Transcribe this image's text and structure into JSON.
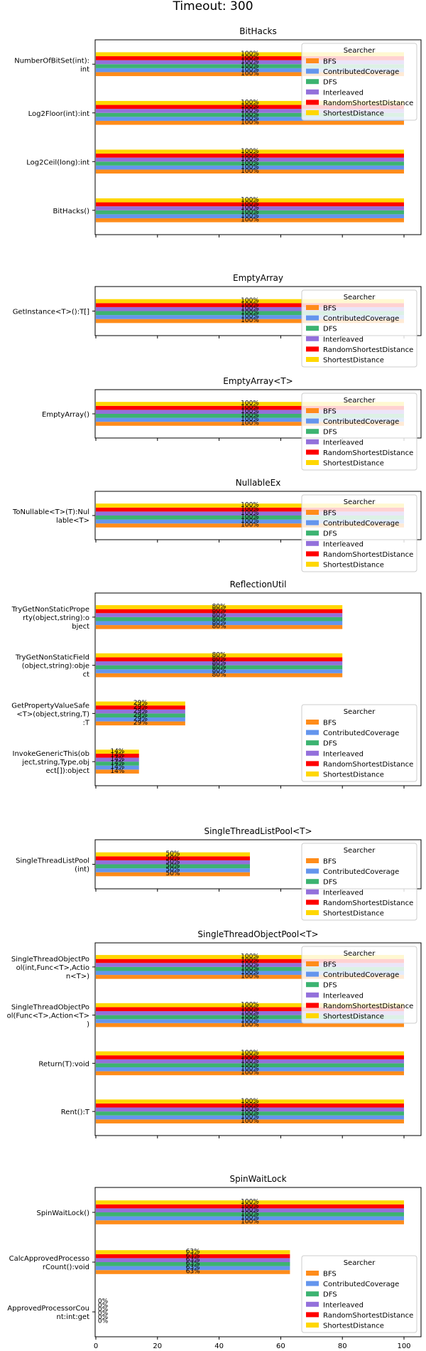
{
  "page_title": "Timeout: 300",
  "colors": {
    "BFS": "#ff8c1a",
    "ContributedCoverage": "#6495ed",
    "DFS": "#3cb371",
    "Interleaved": "#9370db",
    "RandomShortestDistance": "#ff0000",
    "ShortestDistance": "#ffd700"
  },
  "legend": {
    "title": "Searcher",
    "entries": [
      "BFS",
      "ContributedCoverage",
      "DFS",
      "Interleaved",
      "RandomShortestDistance",
      "ShortestDistance"
    ]
  },
  "chart_data": [
    {
      "type": "bar",
      "orientation": "horizontal",
      "title": "BitHacks",
      "categories": [
        "NumberOfBitSet(int):\nint",
        "Log2Floor(int):int",
        "Log2Ceil(long):int",
        "BitHacks()"
      ],
      "series": [
        {
          "name": "BFS",
          "values": [
            100,
            100,
            100,
            100
          ]
        },
        {
          "name": "ContributedCoverage",
          "values": [
            100,
            100,
            100,
            100
          ]
        },
        {
          "name": "DFS",
          "values": [
            100,
            100,
            100,
            100
          ]
        },
        {
          "name": "Interleaved",
          "values": [
            100,
            100,
            100,
            100
          ]
        },
        {
          "name": "RandomShortestDistance",
          "values": [
            100,
            100,
            100,
            100
          ]
        },
        {
          "name": "ShortestDistance",
          "values": [
            100,
            100,
            100,
            100
          ]
        }
      ],
      "xlim": [
        0,
        100
      ],
      "legend_position": "upper right"
    },
    {
      "type": "bar",
      "orientation": "horizontal",
      "title": "EmptyArray",
      "categories": [
        "GetInstance<T>():T[]"
      ],
      "series": [
        {
          "name": "BFS",
          "values": [
            100
          ]
        },
        {
          "name": "ContributedCoverage",
          "values": [
            100
          ]
        },
        {
          "name": "DFS",
          "values": [
            100
          ]
        },
        {
          "name": "Interleaved",
          "values": [
            100
          ]
        },
        {
          "name": "RandomShortestDistance",
          "values": [
            100
          ]
        },
        {
          "name": "ShortestDistance",
          "values": [
            100
          ]
        }
      ],
      "xlim": [
        0,
        100
      ],
      "legend_position": "upper right"
    },
    {
      "type": "bar",
      "orientation": "horizontal",
      "title": "EmptyArray<T>",
      "categories": [
        "EmptyArray()"
      ],
      "series": [
        {
          "name": "BFS",
          "values": [
            100
          ]
        },
        {
          "name": "ContributedCoverage",
          "values": [
            100
          ]
        },
        {
          "name": "DFS",
          "values": [
            100
          ]
        },
        {
          "name": "Interleaved",
          "values": [
            100
          ]
        },
        {
          "name": "RandomShortestDistance",
          "values": [
            100
          ]
        },
        {
          "name": "ShortestDistance",
          "values": [
            100
          ]
        }
      ],
      "xlim": [
        0,
        100
      ],
      "legend_position": "upper right"
    },
    {
      "type": "bar",
      "orientation": "horizontal",
      "title": "NullableEx",
      "categories": [
        "ToNullable<T>(T):Nul\nlable<T>"
      ],
      "series": [
        {
          "name": "BFS",
          "values": [
            100
          ]
        },
        {
          "name": "ContributedCoverage",
          "values": [
            100
          ]
        },
        {
          "name": "DFS",
          "values": [
            100
          ]
        },
        {
          "name": "Interleaved",
          "values": [
            100
          ]
        },
        {
          "name": "RandomShortestDistance",
          "values": [
            100
          ]
        },
        {
          "name": "ShortestDistance",
          "values": [
            100
          ]
        }
      ],
      "xlim": [
        0,
        100
      ],
      "legend_position": "upper right"
    },
    {
      "type": "bar",
      "orientation": "horizontal",
      "title": "ReflectionUtil",
      "categories": [
        "TryGetNonStaticPrope\nrty(object,string):o\nbject",
        "TryGetNonStaticField\n(object,string):obje\nct",
        "GetPropertyValueSafe\n<T>(object,string,T)\n:T",
        "InvokeGenericThis(ob\nject,string,Type,obj\nect[]):object"
      ],
      "series": [
        {
          "name": "BFS",
          "values": [
            80,
            80,
            29,
            14
          ]
        },
        {
          "name": "ContributedCoverage",
          "values": [
            80,
            80,
            29,
            14
          ]
        },
        {
          "name": "DFS",
          "values": [
            80,
            80,
            29,
            14
          ]
        },
        {
          "name": "Interleaved",
          "values": [
            80,
            80,
            29,
            14
          ]
        },
        {
          "name": "RandomShortestDistance",
          "values": [
            80,
            80,
            29,
            14
          ]
        },
        {
          "name": "ShortestDistance",
          "values": [
            80,
            80,
            29,
            14
          ]
        }
      ],
      "xlim": [
        0,
        100
      ],
      "legend_position": "lower right"
    },
    {
      "type": "bar",
      "orientation": "horizontal",
      "title": "SingleThreadListPool<T>",
      "categories": [
        "SingleThreadListPool\n(int)"
      ],
      "series": [
        {
          "name": "BFS",
          "values": [
            50
          ]
        },
        {
          "name": "ContributedCoverage",
          "values": [
            50
          ]
        },
        {
          "name": "DFS",
          "values": [
            50
          ]
        },
        {
          "name": "Interleaved",
          "values": [
            50
          ]
        },
        {
          "name": "RandomShortestDistance",
          "values": [
            50
          ]
        },
        {
          "name": "ShortestDistance",
          "values": [
            50
          ]
        }
      ],
      "xlim": [
        0,
        100
      ],
      "legend_position": "upper right"
    },
    {
      "type": "bar",
      "orientation": "horizontal",
      "title": "SingleThreadObjectPool<T>",
      "categories": [
        "SingleThreadObjectPo\nol(int,Func<T>,Actio\nn<T>)",
        "SingleThreadObjectPo\nol(Func<T>,Action<T>\n)",
        "Return(T):void",
        "Rent():T"
      ],
      "series": [
        {
          "name": "BFS",
          "values": [
            100,
            100,
            100,
            100
          ]
        },
        {
          "name": "ContributedCoverage",
          "values": [
            100,
            100,
            100,
            100
          ]
        },
        {
          "name": "DFS",
          "values": [
            100,
            100,
            100,
            100
          ]
        },
        {
          "name": "Interleaved",
          "values": [
            100,
            100,
            100,
            100
          ]
        },
        {
          "name": "RandomShortestDistance",
          "values": [
            100,
            100,
            100,
            100
          ]
        },
        {
          "name": "ShortestDistance",
          "values": [
            100,
            100,
            100,
            100
          ]
        }
      ],
      "xlim": [
        0,
        100
      ],
      "legend_position": "upper right"
    },
    {
      "type": "bar",
      "orientation": "horizontal",
      "title": "SpinWaitLock",
      "categories": [
        "SpinWaitLock()",
        "CalcApprovedProcesso\nrCount():void",
        "ApprovedProcessorCou\nnt:int:get"
      ],
      "series": [
        {
          "name": "BFS",
          "values": [
            100,
            63,
            0
          ]
        },
        {
          "name": "ContributedCoverage",
          "values": [
            100,
            63,
            0
          ]
        },
        {
          "name": "DFS",
          "values": [
            100,
            63,
            0
          ]
        },
        {
          "name": "Interleaved",
          "values": [
            100,
            63,
            0
          ]
        },
        {
          "name": "RandomShortestDistance",
          "values": [
            100,
            63,
            0
          ]
        },
        {
          "name": "ShortestDistance",
          "values": [
            100,
            63,
            0
          ]
        }
      ],
      "xlim": [
        0,
        100
      ],
      "xticks": [
        "0",
        "20",
        "40",
        "60",
        "80",
        "100"
      ],
      "legend_position": "lower right"
    }
  ]
}
